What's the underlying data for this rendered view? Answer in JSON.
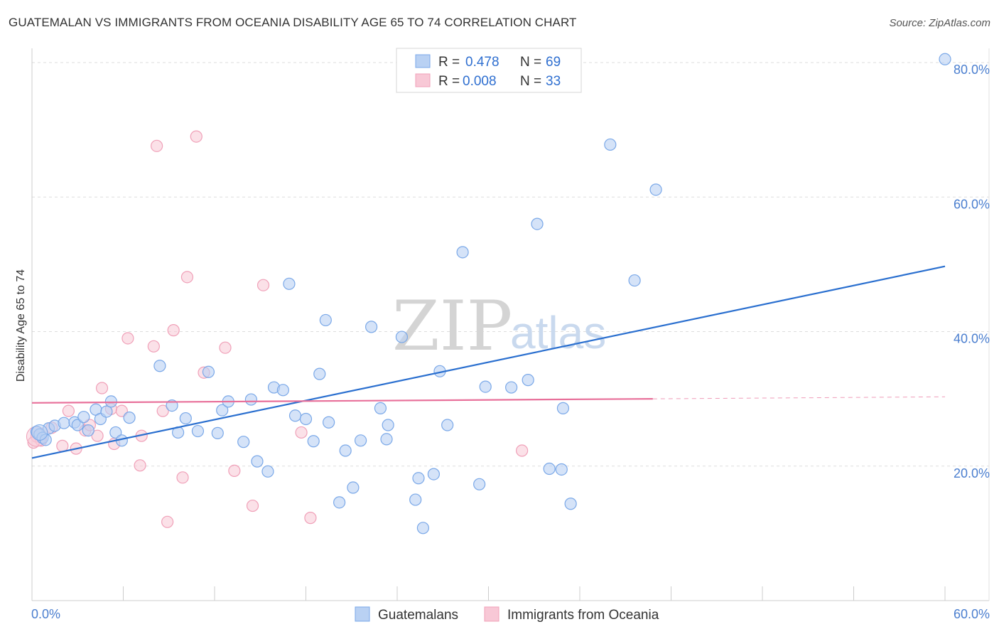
{
  "header": {
    "title": "GUATEMALAN VS IMMIGRANTS FROM OCEANIA DISABILITY AGE 65 TO 74 CORRELATION CHART",
    "source": "Source: ZipAtlas.com"
  },
  "watermark": {
    "part1": "ZIP",
    "part2": "atlas"
  },
  "colors": {
    "blue": "#7aa8e8",
    "blue_fill": "#b9d1f3",
    "blue_line": "#2a6fcf",
    "pink": "#f0a0b8",
    "pink_fill": "#f8c8d6",
    "pink_line": "#e8709a",
    "axis_text": "#4a7ecf",
    "grid": "#dddddd"
  },
  "legend": {
    "rows": [
      {
        "r_label": "R =",
        "r_value": "0.478",
        "n_label": "N =",
        "n_value": "69",
        "color": "blue"
      },
      {
        "r_label": "R =",
        "r_value": "0.008",
        "n_label": "N =",
        "n_value": "33",
        "color": "pink"
      }
    ]
  },
  "bottom_legend": [
    {
      "label": "Guatemalans",
      "color": "blue"
    },
    {
      "label": "Immigrants from Oceania",
      "color": "pink"
    }
  ],
  "chart_data": {
    "type": "scatter",
    "title": "GUATEMALAN VS IMMIGRANTS FROM OCEANIA DISABILITY AGE 65 TO 74 CORRELATION CHART",
    "xlabel": "",
    "ylabel": "Disability Age 65 to 74",
    "xlim": [
      0,
      60
    ],
    "ylim": [
      0,
      82
    ],
    "x_tick_labels": [
      "0.0%",
      "60.0%"
    ],
    "y_ticks": [
      20,
      40,
      60,
      80
    ],
    "y_tick_labels": [
      "20.0%",
      "40.0%",
      "60.0%",
      "80.0%"
    ],
    "grid": true,
    "series": [
      {
        "name": "Guatemalans",
        "color": "blue",
        "r": 0.478,
        "n": 69,
        "trend": {
          "x": [
            0,
            60
          ],
          "y": [
            21.2,
            49.7
          ],
          "dashed_after": null
        },
        "points": [
          [
            0.3,
            25.1
          ],
          [
            0.5,
            24.7
          ],
          [
            0.7,
            24.2
          ],
          [
            0.9,
            23.9
          ],
          [
            1.1,
            25.6
          ],
          [
            1.5,
            26.0
          ],
          [
            2.1,
            26.4
          ],
          [
            2.8,
            26.5
          ],
          [
            3.0,
            26.1
          ],
          [
            3.4,
            27.3
          ],
          [
            3.7,
            25.3
          ],
          [
            4.2,
            28.4
          ],
          [
            4.5,
            27.0
          ],
          [
            4.9,
            28.1
          ],
          [
            5.2,
            29.6
          ],
          [
            5.5,
            25.0
          ],
          [
            5.9,
            23.8
          ],
          [
            6.4,
            27.2
          ],
          [
            8.4,
            34.9
          ],
          [
            9.2,
            29.0
          ],
          [
            9.6,
            25.0
          ],
          [
            10.1,
            27.1
          ],
          [
            10.9,
            25.2
          ],
          [
            11.6,
            34.0
          ],
          [
            12.2,
            24.9
          ],
          [
            12.5,
            28.3
          ],
          [
            12.9,
            29.6
          ],
          [
            13.9,
            23.6
          ],
          [
            14.4,
            29.9
          ],
          [
            14.8,
            20.7
          ],
          [
            15.5,
            19.2
          ],
          [
            15.9,
            31.7
          ],
          [
            16.5,
            31.3
          ],
          [
            16.9,
            47.1
          ],
          [
            17.3,
            27.5
          ],
          [
            18.0,
            27.0
          ],
          [
            18.5,
            23.7
          ],
          [
            18.9,
            33.7
          ],
          [
            19.3,
            41.7
          ],
          [
            19.5,
            26.5
          ],
          [
            20.2,
            14.6
          ],
          [
            20.6,
            22.3
          ],
          [
            21.1,
            16.8
          ],
          [
            21.6,
            23.8
          ],
          [
            22.3,
            40.7
          ],
          [
            22.9,
            28.6
          ],
          [
            23.3,
            24.0
          ],
          [
            23.4,
            26.1
          ],
          [
            24.3,
            39.2
          ],
          [
            25.2,
            15.0
          ],
          [
            25.4,
            18.2
          ],
          [
            25.7,
            10.8
          ],
          [
            26.4,
            18.8
          ],
          [
            26.8,
            34.1
          ],
          [
            27.3,
            26.1
          ],
          [
            28.3,
            51.8
          ],
          [
            29.4,
            17.3
          ],
          [
            29.8,
            31.8
          ],
          [
            31.5,
            31.7
          ],
          [
            32.6,
            32.8
          ],
          [
            33.2,
            56.0
          ],
          [
            34.0,
            19.6
          ],
          [
            34.8,
            19.5
          ],
          [
            34.9,
            28.6
          ],
          [
            35.4,
            14.4
          ],
          [
            38.0,
            67.8
          ],
          [
            39.6,
            47.6
          ],
          [
            41.0,
            61.1
          ],
          [
            60.0,
            80.5
          ]
        ]
      },
      {
        "name": "Immigrants from Oceania",
        "color": "pink",
        "r": 0.008,
        "n": 33,
        "trend": {
          "x": [
            0,
            40.8,
            60
          ],
          "y": [
            29.4,
            30.0,
            30.3
          ],
          "dashed_after": 40.8
        },
        "points": [
          [
            0.3,
            24.4
          ],
          [
            0.6,
            23.8
          ],
          [
            1.3,
            25.7
          ],
          [
            2.0,
            23.0
          ],
          [
            2.4,
            28.2
          ],
          [
            2.9,
            22.6
          ],
          [
            3.5,
            25.3
          ],
          [
            3.8,
            26.1
          ],
          [
            4.3,
            24.5
          ],
          [
            4.6,
            31.6
          ],
          [
            5.2,
            28.5
          ],
          [
            5.4,
            23.3
          ],
          [
            5.9,
            28.2
          ],
          [
            6.3,
            39.0
          ],
          [
            7.1,
            20.1
          ],
          [
            7.2,
            24.5
          ],
          [
            8.0,
            37.8
          ],
          [
            8.2,
            67.6
          ],
          [
            8.6,
            28.2
          ],
          [
            8.9,
            11.7
          ],
          [
            9.3,
            40.2
          ],
          [
            9.9,
            18.3
          ],
          [
            10.2,
            48.1
          ],
          [
            10.8,
            69.0
          ],
          [
            11.3,
            33.9
          ],
          [
            12.7,
            37.6
          ],
          [
            13.3,
            19.3
          ],
          [
            14.5,
            14.1
          ],
          [
            15.2,
            46.9
          ],
          [
            17.7,
            25.0
          ],
          [
            18.3,
            12.3
          ],
          [
            32.2,
            22.3
          ],
          [
            0.1,
            23.5
          ]
        ]
      }
    ]
  }
}
